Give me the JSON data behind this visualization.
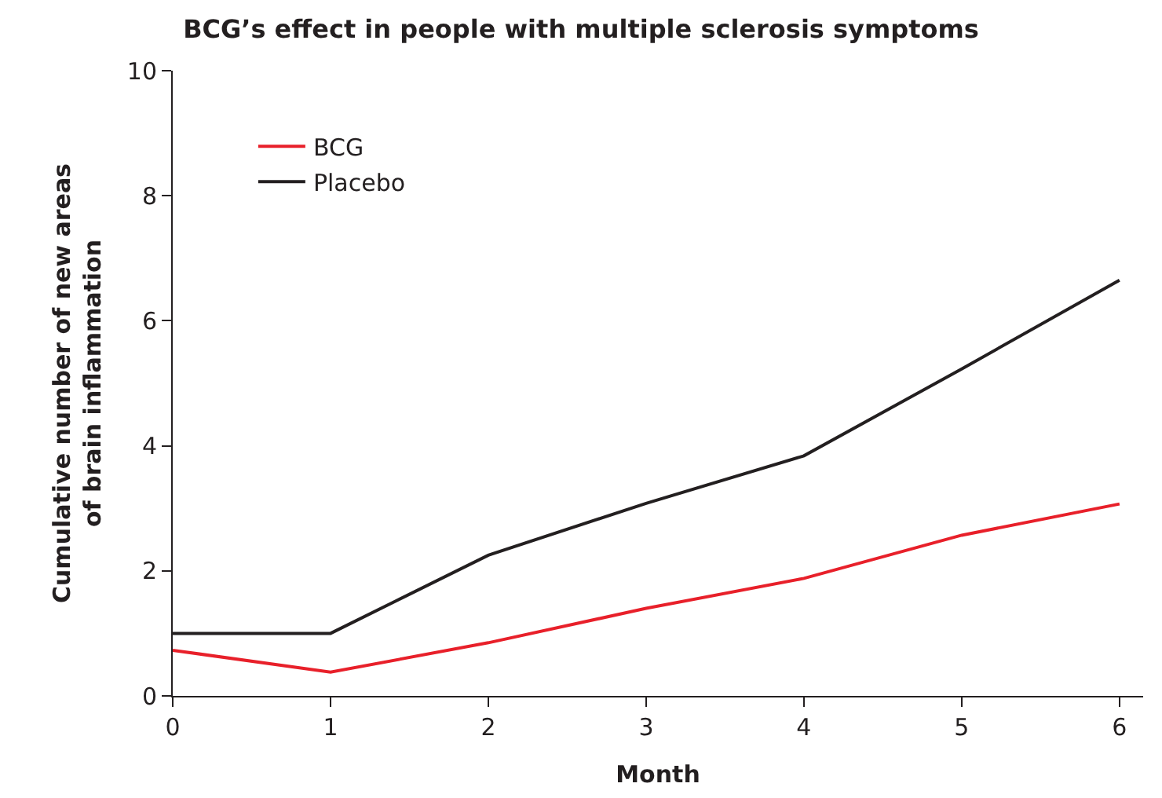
{
  "chart_data": {
    "type": "line",
    "title": "BCG’s effect in people with multiple sclerosis symptoms",
    "xlabel": "Month",
    "ylabel": "Cumulative number of new areas of brain inflammation",
    "x": [
      0,
      1,
      2,
      3,
      4,
      5,
      6
    ],
    "series": [
      {
        "name": "BCG",
        "color": "#e8202a",
        "values": [
          0.73,
          0.38,
          0.85,
          1.4,
          1.88,
          2.57,
          3.07
        ]
      },
      {
        "name": "Placebo",
        "color": "#231f20",
        "values": [
          1.0,
          1.0,
          2.25,
          3.08,
          3.84,
          5.23,
          6.65
        ]
      }
    ],
    "xlim": [
      0,
      6.15
    ],
    "xticks": [
      0,
      1,
      2,
      3,
      4,
      5,
      6
    ],
    "ylim": [
      0,
      10
    ],
    "yticks": [
      0,
      2,
      4,
      6,
      8,
      10
    ],
    "grid": false,
    "legend": "top left",
    "marker": "none",
    "line_style": "solid"
  }
}
